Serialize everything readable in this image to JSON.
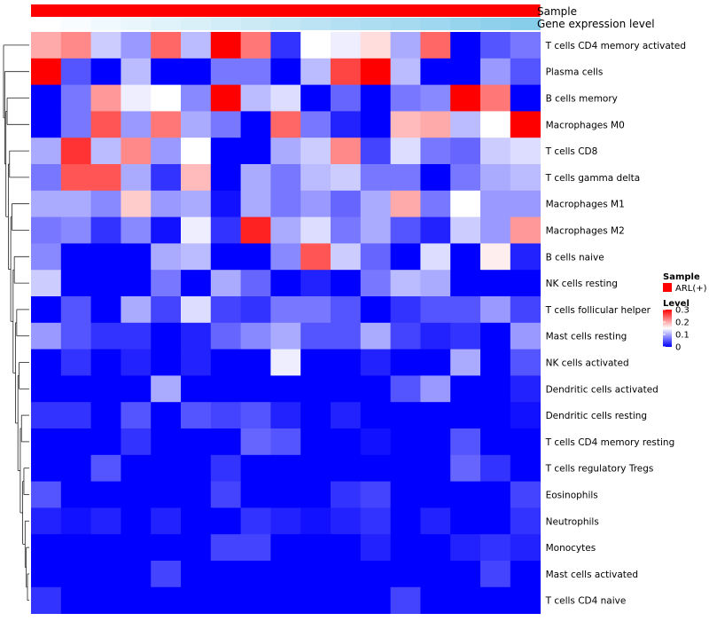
{
  "chart_data": {
    "type": "heatmap",
    "annotations": [
      {
        "name": "Sample",
        "color": "#ff0000"
      },
      {
        "name": "Gene expression level",
        "colors": [
          "#ffffff",
          "#87ceeb"
        ]
      }
    ],
    "rows": [
      "T cells CD4 memory activated",
      "Plasma cells",
      "B cells memory",
      "Macrophages M0",
      "T cells CD8",
      "T cells gamma delta",
      "Macrophages M1",
      "Macrophages M2",
      "B cells naive",
      "NK cells resting",
      "T cells follicular helper",
      "Mast cells resting",
      "NK cells activated",
      "Dendritic cells activated",
      "Dendritic cells resting",
      "T cells CD4 memory resting",
      "T cells regulatory  Tregs",
      "Eosinophils",
      "Neutrophils",
      "Monocytes",
      "Mast cells activated",
      "T cells CD4 naive"
    ],
    "columns": 17,
    "values": [
      [
        0.2,
        0.22,
        0.12,
        0.09,
        0.24,
        0.11,
        0.3,
        0.23,
        0.03,
        0.15,
        0.14,
        0.17,
        0.1,
        0.24,
        0.0,
        0.05,
        0.07
      ],
      [
        0.3,
        0.05,
        0.0,
        0.11,
        0.0,
        0.0,
        0.07,
        0.07,
        0.0,
        0.11,
        0.26,
        0.3,
        0.11,
        0.0,
        0.0,
        0.09,
        0.05
      ],
      [
        0.0,
        0.07,
        0.21,
        0.14,
        0.15,
        0.08,
        0.3,
        0.11,
        0.13,
        0.0,
        0.06,
        0.0,
        0.07,
        0.08,
        0.3,
        0.23,
        0.0
      ],
      [
        0.0,
        0.07,
        0.25,
        0.09,
        0.23,
        0.1,
        0.07,
        0.0,
        0.24,
        0.07,
        0.02,
        0.0,
        0.19,
        0.2,
        0.11,
        0.15,
        0.3
      ],
      [
        0.1,
        0.27,
        0.11,
        0.22,
        0.09,
        0.15,
        0.0,
        0.0,
        0.1,
        0.12,
        0.22,
        0.04,
        0.13,
        0.07,
        0.06,
        0.12,
        0.13
      ],
      [
        0.07,
        0.25,
        0.25,
        0.1,
        0.03,
        0.19,
        0.0,
        0.1,
        0.07,
        0.11,
        0.12,
        0.07,
        0.07,
        0.0,
        0.07,
        0.1,
        0.11
      ],
      [
        0.1,
        0.1,
        0.08,
        0.18,
        0.09,
        0.1,
        0.01,
        0.1,
        0.07,
        0.09,
        0.06,
        0.1,
        0.2,
        0.07,
        0.15,
        0.09,
        0.09
      ],
      [
        0.07,
        0.08,
        0.03,
        0.08,
        0.01,
        0.14,
        0.03,
        0.28,
        0.1,
        0.13,
        0.07,
        0.1,
        0.05,
        0.02,
        0.12,
        0.09,
        0.21
      ],
      [
        0.08,
        0.0,
        0.0,
        0.0,
        0.1,
        0.11,
        0.0,
        0.0,
        0.08,
        0.25,
        0.12,
        0.06,
        0.0,
        0.13,
        0.0,
        0.16,
        0.02
      ],
      [
        0.12,
        0.0,
        0.0,
        0.0,
        0.07,
        0.0,
        0.1,
        0.06,
        0.0,
        0.02,
        0.0,
        0.07,
        0.11,
        0.1,
        0.0,
        0.0,
        0.0
      ],
      [
        0.0,
        0.05,
        0.0,
        0.1,
        0.04,
        0.13,
        0.04,
        0.03,
        0.07,
        0.07,
        0.05,
        0.0,
        0.03,
        0.05,
        0.05,
        0.09,
        0.04
      ],
      [
        0.09,
        0.05,
        0.03,
        0.03,
        0.0,
        0.02,
        0.06,
        0.08,
        0.1,
        0.05,
        0.05,
        0.1,
        0.04,
        0.02,
        0.03,
        0.0,
        0.09
      ],
      [
        0.0,
        0.03,
        0.0,
        0.02,
        0.0,
        0.02,
        0.0,
        0.0,
        0.14,
        0.0,
        0.0,
        0.02,
        0.0,
        0.0,
        0.1,
        0.0,
        0.05
      ],
      [
        0.0,
        0.0,
        0.0,
        0.0,
        0.1,
        0.0,
        0.0,
        0.0,
        0.0,
        0.0,
        0.0,
        0.0,
        0.05,
        0.09,
        0.0,
        0.0,
        0.02
      ],
      [
        0.03,
        0.03,
        0.0,
        0.05,
        0.0,
        0.05,
        0.04,
        0.05,
        0.02,
        0.0,
        0.02,
        0.0,
        0.0,
        0.0,
        0.0,
        0.0,
        0.01
      ],
      [
        0.0,
        0.0,
        0.0,
        0.03,
        0.0,
        0.0,
        0.0,
        0.06,
        0.05,
        0.0,
        0.0,
        0.01,
        0.0,
        0.0,
        0.05,
        0.0,
        0.0
      ],
      [
        0.0,
        0.0,
        0.05,
        0.0,
        0.0,
        0.0,
        0.03,
        0.0,
        0.0,
        0.0,
        0.0,
        0.0,
        0.0,
        0.0,
        0.06,
        0.03,
        0.0
      ],
      [
        0.05,
        0.0,
        0.0,
        0.0,
        0.0,
        0.0,
        0.04,
        0.0,
        0.0,
        0.0,
        0.03,
        0.04,
        0.0,
        0.0,
        0.0,
        0.0,
        0.04
      ],
      [
        0.02,
        0.01,
        0.02,
        0.0,
        0.02,
        0.0,
        0.0,
        0.03,
        0.02,
        0.01,
        0.02,
        0.03,
        0.0,
        0.02,
        0.0,
        0.0,
        0.03
      ],
      [
        0.0,
        0.0,
        0.0,
        0.0,
        0.0,
        0.0,
        0.04,
        0.04,
        0.0,
        0.0,
        0.0,
        0.02,
        0.0,
        0.0,
        0.02,
        0.03,
        0.02
      ],
      [
        0.0,
        0.0,
        0.0,
        0.0,
        0.04,
        0.0,
        0.0,
        0.0,
        0.0,
        0.0,
        0.0,
        0.0,
        0.0,
        0.0,
        0.0,
        0.04,
        0.0
      ],
      [
        0.03,
        0.0,
        0.0,
        0.0,
        0.0,
        0.0,
        0.0,
        0.0,
        0.0,
        0.0,
        0.0,
        0.0,
        0.04,
        0.0,
        0.0,
        0.0,
        0.0
      ]
    ],
    "dendrogram_merges": [
      [
        20,
        21
      ],
      [
        19,
        22
      ],
      [
        18,
        23
      ],
      [
        16,
        17
      ],
      [
        24,
        25
      ],
      [
        14,
        15
      ],
      [
        26,
        27
      ],
      [
        12,
        13
      ],
      [
        28,
        29
      ],
      [
        10,
        11
      ],
      [
        30,
        31
      ],
      [
        8,
        9
      ],
      [
        32,
        33
      ],
      [
        6,
        7
      ],
      [
        34,
        35
      ],
      [
        4,
        5
      ],
      [
        36,
        37
      ],
      [
        2,
        3
      ],
      [
        38,
        39
      ],
      [
        1,
        40
      ],
      [
        0,
        41
      ]
    ],
    "color_scale": {
      "min": 0,
      "max": 0.3,
      "low": "#0000ff",
      "mid": "#ffffff",
      "high": "#ff0000",
      "mid_value": 0.15
    },
    "legend": {
      "sample_title": "Sample",
      "sample_entry": "ARL(+)",
      "level_title": "Level",
      "level_ticks": [
        {
          "value": 0.3,
          "label": "0.3"
        },
        {
          "value": 0.2,
          "label": "0.2"
        },
        {
          "value": 0.1,
          "label": "0.1"
        },
        {
          "value": 0,
          "label": "0"
        }
      ]
    }
  }
}
